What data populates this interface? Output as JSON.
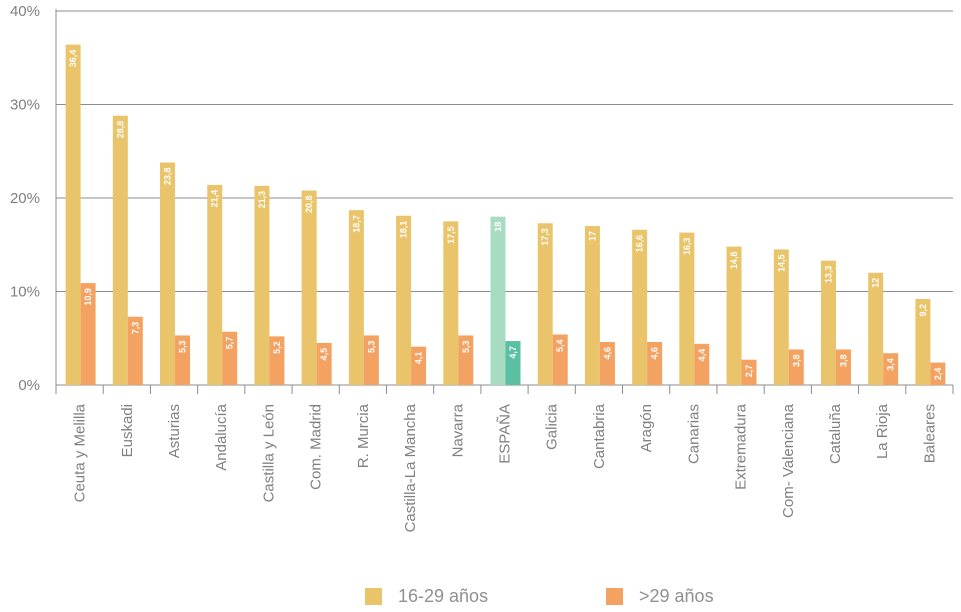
{
  "chart_data": {
    "type": "bar",
    "categories": [
      "Ceuta y Melilla",
      "Euskadi",
      "Asturias",
      "Andalucía",
      "Castilla y León",
      "Com. Madrid",
      "R. Murcia",
      "Castilla-La Mancha",
      "Navarra",
      "ESPAÑA",
      "Galicia",
      "Cantabria",
      "Aragón",
      "Canarias",
      "Extremadura",
      "Com- Valenciana",
      "Cataluña",
      "La Rioja",
      "Baleares"
    ],
    "series": [
      {
        "name": "16-29 años",
        "color": "#E9C46A",
        "values": [
          36.4,
          28.8,
          23.8,
          21.4,
          21.3,
          20.8,
          18.7,
          18.1,
          17.5,
          18,
          17.3,
          17,
          16.6,
          16.3,
          14.8,
          14.5,
          13.3,
          12,
          9.2
        ],
        "labels": [
          "36,4",
          "28,8",
          "23,8",
          "21,4",
          "21,3",
          "20,8",
          "18,7",
          "18,1",
          "17,5",
          "18",
          "17,3",
          "17",
          "16,6",
          "16,3",
          "14,8",
          "14,5",
          "13,3",
          "12",
          "9,2"
        ]
      },
      {
        "name": ">29 años",
        "color": "#F4A261",
        "values": [
          10.9,
          7.3,
          5.3,
          5.7,
          5.2,
          4.5,
          5.3,
          4.1,
          5.3,
          4.7,
          5.4,
          4.6,
          4.6,
          4.4,
          2.7,
          3.8,
          3.8,
          3.4,
          2.4
        ],
        "labels": [
          "10,9",
          "7,3",
          "5,3",
          "5,7",
          "5,2",
          "4,5",
          "5,3",
          "4,1",
          "5,3",
          "4,7",
          "5,4",
          "4,6",
          "4,6",
          "4,4",
          "2,7",
          "3,8",
          "3,8",
          "3,4",
          "2,4"
        ]
      }
    ],
    "highlight": {
      "category": "ESPAÑA",
      "colors": [
        "#A8DCC2",
        "#5BBFA2"
      ]
    },
    "yticks": [
      "0%",
      "10%",
      "20%",
      "30%",
      "40%"
    ],
    "ylim": [
      0,
      40
    ],
    "grid": true,
    "legend_position": "bottom"
  }
}
